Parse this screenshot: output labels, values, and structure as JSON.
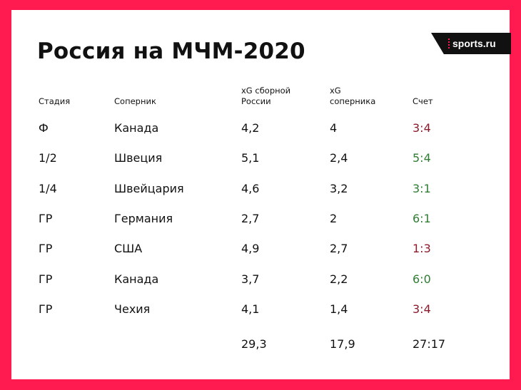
{
  "title": "Россия на МЧМ-2020",
  "brand": "sports.ru",
  "colors": {
    "frame": "#ff1a4f",
    "win": "#2e7d32",
    "loss": "#8b1a2b"
  },
  "chart_data": {
    "type": "table",
    "columns": [
      {
        "line1": "",
        "line2": "Стадия"
      },
      {
        "line1": "",
        "line2": "Соперник"
      },
      {
        "line1": "xG сборной",
        "line2": "России"
      },
      {
        "line1": "xG",
        "line2": "соперника"
      },
      {
        "line1": "",
        "line2": "Счет"
      }
    ],
    "rows": [
      {
        "stage": "Ф",
        "opponent": "Канада",
        "xg_russia": "4,2",
        "xg_opponent": "4",
        "score": "3:4",
        "result": "loss"
      },
      {
        "stage": "1/2",
        "opponent": "Швеция",
        "xg_russia": "5,1",
        "xg_opponent": "2,4",
        "score": "5:4",
        "result": "win"
      },
      {
        "stage": "1/4",
        "opponent": "Швейцария",
        "xg_russia": "4,6",
        "xg_opponent": "3,2",
        "score": "3:1",
        "result": "win"
      },
      {
        "stage": "ГР",
        "opponent": "Германия",
        "xg_russia": "2,7",
        "xg_opponent": "2",
        "score": "6:1",
        "result": "win"
      },
      {
        "stage": "ГР",
        "opponent": "США",
        "xg_russia": "4,9",
        "xg_opponent": "2,7",
        "score": "1:3",
        "result": "loss"
      },
      {
        "stage": "ГР",
        "opponent": "Канада",
        "xg_russia": "3,7",
        "xg_opponent": "2,2",
        "score": "6:0",
        "result": "win"
      },
      {
        "stage": "ГР",
        "opponent": "Чехия",
        "xg_russia": "4,1",
        "xg_opponent": "1,4",
        "score": "3:4",
        "result": "loss"
      }
    ],
    "totals": {
      "xg_russia": "29,3",
      "xg_opponent": "17,9",
      "score": "27:17"
    }
  }
}
